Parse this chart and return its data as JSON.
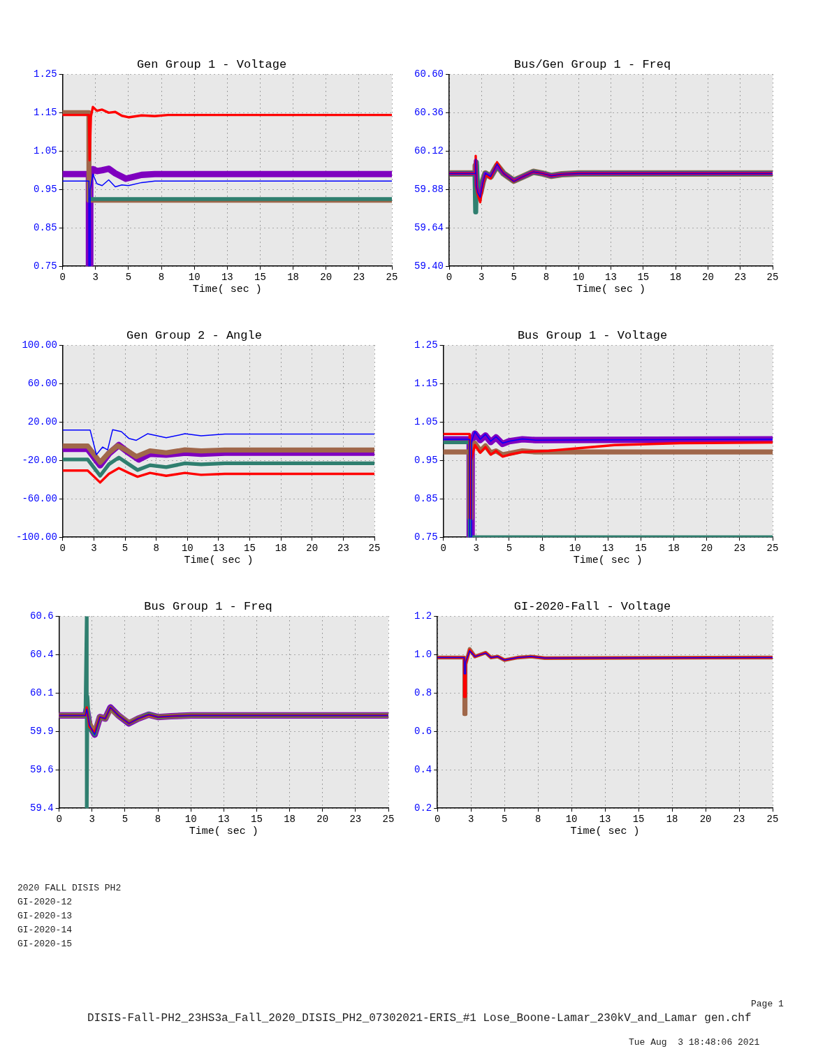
{
  "chart_data": [
    {
      "type": "line",
      "title": "Gen Group 1 - Voltage",
      "xlabel": "Time( sec )",
      "grid": true,
      "xlim": [
        0,
        25
      ],
      "ylim": [
        0.75,
        1.25
      ],
      "xticks": [
        0,
        {
          "value": 2.5,
          "label": "3"
        },
        5,
        {
          "value": 7.5,
          "label": "8"
        },
        10,
        {
          "value": 12.5,
          "label": "13"
        },
        15,
        {
          "value": 17.5,
          "label": "18"
        },
        20,
        {
          "value": 22.5,
          "label": "23"
        },
        25
      ],
      "yticks": [
        0.75,
        0.85,
        0.95,
        1.05,
        1.15,
        1.25
      ],
      "series": [
        {
          "color": "#0000ff",
          "x": [
            0,
            2,
            2,
            2.1,
            2.1,
            2.3,
            2.6,
            3,
            3.5,
            4,
            4.5,
            5,
            6,
            7,
            8,
            25
          ],
          "values": [
            0.972,
            0.972,
            0.75,
            0.75,
            0.95,
            0.99,
            0.965,
            0.96,
            0.975,
            0.957,
            0.962,
            0.96,
            0.968,
            0.972,
            0.972,
            0.972
          ]
        },
        {
          "color": "#ff0000",
          "x": [
            0,
            2,
            2.05,
            2.15,
            2.3,
            2.6,
            3,
            3.5,
            4,
            4.5,
            5,
            6,
            7,
            8,
            25
          ],
          "values": [
            1.144,
            1.144,
            1.026,
            1.14,
            1.165,
            1.155,
            1.158,
            1.15,
            1.152,
            1.142,
            1.138,
            1.143,
            1.141,
            1.144,
            1.144
          ]
        },
        {
          "color": "#2f7f6f",
          "x": [
            2.1,
            25
          ],
          "values": [
            0.925,
            0.925
          ]
        },
        {
          "color": "#a0674a",
          "x": [
            0,
            2,
            2,
            25
          ],
          "values": [
            1.15,
            1.15,
            0.922,
            0.922
          ]
        },
        {
          "color": "#7f00bf",
          "x": [
            0,
            2,
            2,
            2.1,
            2.1,
            2.3,
            2.6,
            3,
            3.5,
            4,
            4.8,
            6,
            7,
            25
          ],
          "values": [
            0.99,
            0.99,
            0.75,
            0.75,
            0.985,
            1.003,
            0.998,
            1.0,
            1.004,
            0.992,
            0.978,
            0.988,
            0.99,
            0.99
          ]
        }
      ]
    },
    {
      "type": "line",
      "title": "Bus/Gen Group 1 - Freq",
      "xlabel": "Time( sec )",
      "grid": true,
      "xlim": [
        0,
        25
      ],
      "ylim": [
        59.4,
        60.6
      ],
      "xticks": [
        0,
        {
          "value": 2.5,
          "label": "3"
        },
        5,
        {
          "value": 7.5,
          "label": "8"
        },
        10,
        {
          "value": 12.5,
          "label": "13"
        },
        15,
        {
          "value": 17.5,
          "label": "18"
        },
        20,
        {
          "value": 22.5,
          "label": "23"
        },
        25
      ],
      "yticks": [
        {
          "value": 59.4,
          "label": "59.40"
        },
        59.64,
        59.88,
        60.12,
        60.36,
        {
          "value": 60.6,
          "label": "60.60"
        }
      ],
      "series": [
        {
          "color": "#0000ff",
          "x": [
            0,
            2,
            2.05,
            2.1,
            2.2,
            2.4,
            2.6,
            2.8,
            3.2,
            3.7,
            4.2,
            5,
            5.7,
            6.5,
            7.2,
            7.9,
            8.7,
            10,
            25
          ],
          "values": [
            59.98,
            59.98,
            60.07,
            59.9,
            59.86,
            59.83,
            59.92,
            59.98,
            59.96,
            60.04,
            59.98,
            59.93,
            59.96,
            59.99,
            59.98,
            59.965,
            59.975,
            59.98,
            59.98
          ]
        },
        {
          "color": "#ff0000",
          "x": [
            0,
            2,
            2.05,
            2.1,
            2.2,
            2.4,
            2.6,
            2.8,
            3.2,
            3.7,
            4.2,
            5,
            5.7,
            6.5,
            7.2,
            7.9,
            8.7,
            10,
            25
          ],
          "values": [
            59.98,
            59.98,
            60.09,
            59.9,
            59.85,
            59.8,
            59.91,
            59.97,
            59.95,
            60.05,
            59.98,
            59.93,
            59.96,
            59.99,
            59.98,
            59.965,
            59.975,
            59.98,
            59.98
          ]
        },
        {
          "color": "#7f00bf",
          "x": [
            0,
            2,
            2.05,
            2.1,
            2.2,
            2.4,
            2.6,
            2.8,
            3.2,
            3.7,
            4.2,
            5,
            5.7,
            6.5,
            7.2,
            7.9,
            8.7,
            10,
            25
          ],
          "values": [
            59.98,
            59.98,
            60.06,
            59.91,
            59.87,
            59.84,
            59.92,
            59.98,
            59.96,
            60.03,
            59.98,
            59.935,
            59.96,
            59.99,
            59.98,
            59.965,
            59.975,
            59.98,
            59.98
          ]
        },
        {
          "color": "#2f7f6f",
          "x": [
            0,
            2,
            2.05,
            2.1,
            2.2,
            2.4,
            2.6,
            2.8,
            3.2,
            3.7,
            4.2,
            5,
            5.7,
            6.5,
            7.2,
            7.9,
            8.7,
            10,
            25
          ],
          "values": [
            59.98,
            59.98,
            59.74,
            60.05,
            59.88,
            59.85,
            59.93,
            59.98,
            59.96,
            60.03,
            59.98,
            59.935,
            59.96,
            59.99,
            59.98,
            59.965,
            59.975,
            59.98,
            59.98
          ]
        },
        {
          "color": "#a0674a",
          "x": [
            0,
            2,
            2.05,
            2.1,
            2.2,
            2.4,
            2.6,
            2.8,
            3.2,
            3.7,
            4.2,
            5,
            5.7,
            6.5,
            7.2,
            7.9,
            8.7,
            10,
            25
          ],
          "values": [
            59.98,
            59.98,
            60.03,
            59.92,
            59.88,
            59.86,
            59.93,
            59.98,
            59.96,
            60.03,
            59.98,
            59.935,
            59.96,
            59.99,
            59.98,
            59.965,
            59.975,
            59.98,
            59.98
          ]
        }
      ]
    },
    {
      "type": "line",
      "title": "Gen Group 2 - Angle",
      "xlabel": "Time( sec )",
      "grid": true,
      "xlim": [
        0,
        25
      ],
      "ylim": [
        -100,
        100
      ],
      "xticks": [
        0,
        {
          "value": 2.5,
          "label": "3"
        },
        5,
        {
          "value": 7.5,
          "label": "8"
        },
        10,
        {
          "value": 12.5,
          "label": "13"
        },
        15,
        {
          "value": 17.5,
          "label": "18"
        },
        20,
        {
          "value": 22.5,
          "label": "23"
        },
        25
      ],
      "yticks": [
        {
          "value": -100,
          "label": "-100.00"
        },
        {
          "value": -60,
          "label": "-60.00"
        },
        {
          "value": -20,
          "label": "-20.00"
        },
        {
          "value": 20,
          "label": "20.00"
        },
        {
          "value": 60,
          "label": "60.00"
        },
        {
          "value": 100,
          "label": "100.00"
        }
      ],
      "series": [
        {
          "color": "#0000ff",
          "x": [
            0,
            2.2,
            2.7,
            3.2,
            3.6,
            4,
            4.7,
            5.3,
            5.9,
            6.8,
            8.3,
            9.8,
            11.1,
            13,
            25
          ],
          "values": [
            11.6,
            11.6,
            -14,
            -6,
            -9,
            12,
            10,
            3,
            1,
            7.8,
            3.6,
            7.8,
            5.6,
            7.5,
            7.5
          ]
        },
        {
          "color": "#ff0000",
          "x": [
            0,
            2,
            3,
            3.7,
            4.5,
            5.3,
            6,
            7,
            8.3,
            9.8,
            11.1,
            13,
            25
          ],
          "values": [
            -30.5,
            -30.5,
            -43,
            -34,
            -28,
            -33,
            -37,
            -33,
            -36,
            -33,
            -35,
            -34,
            -34
          ]
        },
        {
          "color": "#2f7f6f",
          "x": [
            0,
            2,
            3,
            3.7,
            4.5,
            5.3,
            6,
            7,
            8.3,
            9.8,
            11.1,
            13,
            25
          ],
          "values": [
            -19,
            -19,
            -36,
            -24,
            -17,
            -24,
            -30,
            -25,
            -27,
            -23,
            -24,
            -23,
            -23
          ]
        },
        {
          "color": "#a0674a",
          "x": [
            0,
            2,
            3,
            3.7,
            4.4,
            5.2,
            5.9,
            7,
            8.3,
            9.8,
            11.1,
            13,
            25
          ],
          "values": [
            -5,
            -5,
            -22,
            -12,
            -4.6,
            -10,
            -16,
            -10,
            -12,
            -9,
            -10,
            -9.2,
            -9.2
          ]
        },
        {
          "color": "#7f00bf",
          "x": [
            0,
            2,
            3,
            3.7,
            4.5,
            5.3,
            6.1,
            7,
            8.3,
            9.8,
            11.1,
            13,
            25
          ],
          "values": [
            -8,
            -8,
            -25,
            -13,
            -4,
            -12,
            -19,
            -13,
            -14,
            -12,
            -13,
            -12,
            -12
          ]
        }
      ]
    },
    {
      "type": "line",
      "title": "Bus Group 1 - Voltage",
      "xlabel": "Time( sec )",
      "grid": true,
      "xlim": [
        0,
        25
      ],
      "ylim": [
        0.75,
        1.25
      ],
      "xticks": [
        0,
        {
          "value": 2.5,
          "label": "3"
        },
        5,
        {
          "value": 7.5,
          "label": "8"
        },
        10,
        {
          "value": 12.5,
          "label": "13"
        },
        15,
        {
          "value": 17.5,
          "label": "18"
        },
        20,
        {
          "value": 22.5,
          "label": "23"
        },
        25
      ],
      "yticks": [
        0.75,
        0.85,
        0.95,
        1.05,
        1.15,
        1.25
      ],
      "series": [
        {
          "color": "#0000ff",
          "x": [
            0,
            2,
            2,
            2.15,
            2.15,
            2.4,
            2.8,
            3.2,
            3.6,
            4,
            4.5,
            5,
            6,
            7,
            25
          ],
          "values": [
            1.005,
            1.005,
            0.75,
            0.75,
            1.0,
            1.025,
            1.005,
            1.018,
            1.0,
            1.012,
            0.995,
            1.0,
            1.006,
            1.003,
            1.005
          ]
        },
        {
          "color": "#ff0000",
          "x": [
            0,
            2,
            2,
            2.1,
            2.1,
            2.4,
            2.8,
            3.2,
            3.6,
            4,
            4.5,
            5,
            6,
            8,
            13,
            18,
            25
          ],
          "values": [
            1.019,
            1.019,
            0.8,
            0.8,
            0.948,
            0.99,
            0.97,
            0.985,
            0.965,
            0.975,
            0.96,
            0.965,
            0.972,
            0.975,
            0.99,
            0.995,
            0.997
          ]
        },
        {
          "color": "#2f7f6f",
          "x": [
            0,
            2,
            2,
            25
          ],
          "values": [
            0.997,
            0.997,
            0.75,
            0.75
          ]
        },
        {
          "color": "#a0674a",
          "x": [
            0,
            2,
            2,
            2.1,
            2.1,
            2.4,
            2.8,
            3.2,
            3.6,
            4,
            4.5,
            5,
            6,
            7,
            25
          ],
          "values": [
            0.972,
            0.972,
            0.8,
            0.8,
            0.97,
            0.995,
            0.975,
            0.988,
            0.97,
            0.975,
            0.965,
            0.968,
            0.975,
            0.972,
            0.972
          ]
        },
        {
          "color": "#7f00bf",
          "x": [
            0,
            2,
            2,
            2.15,
            2.15,
            2.4,
            2.8,
            3.2,
            3.6,
            4,
            4.5,
            5,
            6,
            7,
            25
          ],
          "values": [
            1.005,
            1.005,
            0.75,
            0.75,
            1.0,
            1.02,
            1.003,
            1.015,
            0.998,
            1.01,
            0.993,
            1.0,
            1.005,
            1.003,
            1.005
          ]
        }
      ]
    },
    {
      "type": "line",
      "title": "Bus Group 1 - Freq",
      "xlabel": "Time( sec )",
      "grid": true,
      "xlim": [
        0,
        25
      ],
      "ylim": [
        59.4,
        60.6
      ],
      "xticks": [
        0,
        {
          "value": 2.5,
          "label": "3"
        },
        5,
        {
          "value": 7.5,
          "label": "8"
        },
        10,
        {
          "value": 12.5,
          "label": "13"
        },
        15,
        {
          "value": 17.5,
          "label": "18"
        },
        20,
        {
          "value": 22.5,
          "label": "23"
        },
        25
      ],
      "yticks": [
        59.4,
        {
          "value": 59.64,
          "label": "59.6"
        },
        {
          "value": 59.88,
          "label": "59.9"
        },
        {
          "value": 60.12,
          "label": "60.1"
        },
        {
          "value": 60.36,
          "label": "60.4"
        },
        60.6
      ],
      "series": [
        {
          "color": "#0000ff",
          "x": [
            0,
            2,
            2.1,
            2.3,
            2.7,
            3.1,
            3.5,
            3.9,
            4.5,
            5.3,
            6,
            6.8,
            7.5,
            8.5,
            10,
            25
          ],
          "values": [
            59.98,
            59.98,
            60.02,
            59.92,
            59.86,
            59.97,
            59.96,
            60.03,
            59.98,
            59.93,
            59.96,
            59.985,
            59.97,
            59.975,
            59.98,
            59.98
          ]
        },
        {
          "color": "#ff0000",
          "x": [
            0,
            2,
            2.1,
            2.3,
            2.7,
            3.1,
            3.5,
            3.9,
            4.5,
            5.3,
            6,
            6.8,
            7.5,
            8.5,
            10,
            25
          ],
          "values": [
            59.98,
            59.98,
            60.03,
            59.91,
            59.87,
            59.97,
            59.96,
            60.03,
            59.98,
            59.93,
            59.96,
            59.985,
            59.97,
            59.975,
            59.98,
            59.98
          ]
        },
        {
          "color": "#2f7f6f",
          "x": [
            0,
            2,
            2.1,
            2.1,
            2.15,
            2.3,
            2.7,
            3.1,
            3.5,
            3.9,
            4.5,
            5.3,
            6,
            6.8,
            7.5,
            8.5,
            10,
            25
          ],
          "values": [
            59.98,
            59.98,
            60.6,
            59.4,
            60.1,
            59.9,
            59.86,
            59.97,
            59.96,
            60.03,
            59.98,
            59.93,
            59.96,
            59.99,
            59.97,
            59.975,
            59.98,
            59.98
          ]
        },
        {
          "color": "#a0674a",
          "x": [
            0,
            2,
            2.1,
            2.3,
            2.7,
            3.1,
            3.5,
            3.9,
            4.5,
            5.3,
            6,
            6.8,
            7.5,
            8.5,
            10,
            25
          ],
          "values": [
            59.98,
            59.98,
            60.01,
            59.93,
            59.87,
            59.97,
            59.96,
            60.02,
            59.98,
            59.935,
            59.96,
            59.985,
            59.97,
            59.975,
            59.98,
            59.98
          ]
        },
        {
          "color": "#7f00bf",
          "x": [
            0,
            2,
            2.1,
            2.3,
            2.7,
            3.1,
            3.5,
            3.9,
            4.5,
            5.3,
            6,
            6.8,
            7.5,
            8.5,
            10,
            25
          ],
          "values": [
            59.98,
            59.98,
            60.02,
            59.92,
            59.86,
            59.97,
            59.96,
            60.03,
            59.98,
            59.93,
            59.96,
            59.985,
            59.97,
            59.975,
            59.98,
            59.98
          ]
        }
      ]
    },
    {
      "type": "line",
      "title": "GI-2020-Fall - Voltage",
      "xlabel": "Time( sec )",
      "grid": true,
      "xlim": [
        0,
        25
      ],
      "ylim": [
        0.2,
        1.2
      ],
      "xticks": [
        0,
        {
          "value": 2.5,
          "label": "3"
        },
        5,
        {
          "value": 7.5,
          "label": "8"
        },
        10,
        {
          "value": 12.5,
          "label": "13"
        },
        15,
        {
          "value": 17.5,
          "label": "18"
        },
        20,
        {
          "value": 22.5,
          "label": "23"
        },
        25
      ],
      "yticks": [
        0.2,
        0.4,
        0.6,
        0.8,
        {
          "value": 1,
          "label": "1.0"
        },
        1.2
      ],
      "series": [
        {
          "color": "#0000ff",
          "x": [
            0,
            2,
            2,
            2.1,
            2.1,
            2.4,
            2.8,
            3.2,
            3.6,
            4,
            4.5,
            5,
            6,
            7,
            8,
            25
          ],
          "values": [
            0.985,
            0.985,
            0.9,
            0.9,
            0.96,
            1.02,
            0.99,
            1.0,
            1.008,
            0.985,
            0.99,
            0.972,
            0.985,
            0.99,
            0.982,
            0.985
          ]
        },
        {
          "color": "#ff0000",
          "x": [
            0,
            2,
            2,
            2.1,
            2.1,
            2.4,
            2.8,
            3.2,
            3.6,
            4,
            4.5,
            5,
            6,
            7,
            8,
            25
          ],
          "values": [
            0.985,
            0.985,
            0.78,
            0.78,
            0.95,
            1.025,
            0.99,
            1.0,
            1.01,
            0.985,
            0.99,
            0.972,
            0.985,
            0.99,
            0.982,
            0.985
          ]
        },
        {
          "color": "#a0674a",
          "x": [
            0,
            2,
            2,
            2.1,
            2.1,
            2.4,
            2.8,
            3.2,
            3.6,
            4,
            4.5,
            5,
            6,
            7,
            8,
            25
          ],
          "values": [
            0.985,
            0.985,
            0.69,
            0.69,
            0.95,
            1.03,
            0.99,
            1.0,
            1.01,
            0.985,
            0.99,
            0.972,
            0.985,
            0.99,
            0.982,
            0.985
          ]
        }
      ]
    },
    {
      "type": "other",
      "annotations": [
        "2020 FALL DISIS PH2",
        "GI-2020-12",
        "GI-2020-13",
        "GI-2020-14",
        "GI-2020-15",
        "Page 1",
        "DISIS-Fall-PH2_23HS3a_Fall_2020_DISIS_PH2_07302021-ERIS_#1 Lose_Boone-Lamar_230kV_and_Lamar gen.chf",
        "Tue Aug  3 18:48:06 2021"
      ]
    }
  ]
}
